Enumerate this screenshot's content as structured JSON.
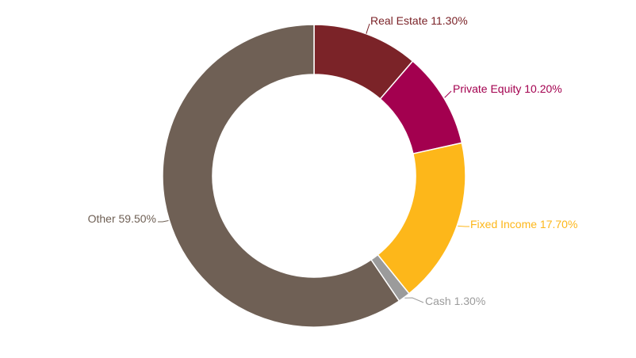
{
  "chart_data": {
    "type": "pie",
    "variant": "donut",
    "legend": "none",
    "slices": [
      {
        "name": "Real Estate",
        "value": 11.3,
        "label": "Real Estate 11.30%",
        "color": "#7b2328"
      },
      {
        "name": "Private Equity",
        "value": 10.2,
        "label": "Private Equity 10.20%",
        "color": "#a3004f"
      },
      {
        "name": "Fixed Income",
        "value": 17.7,
        "label": "Fixed Income 17.70%",
        "color": "#fdb71a"
      },
      {
        "name": "Cash",
        "value": 1.3,
        "label": "Cash 1.30%",
        "color": "#9b9b9b"
      },
      {
        "name": "Other",
        "value": 59.5,
        "label": "Other 59.50%",
        "color": "#6f6055"
      }
    ]
  }
}
